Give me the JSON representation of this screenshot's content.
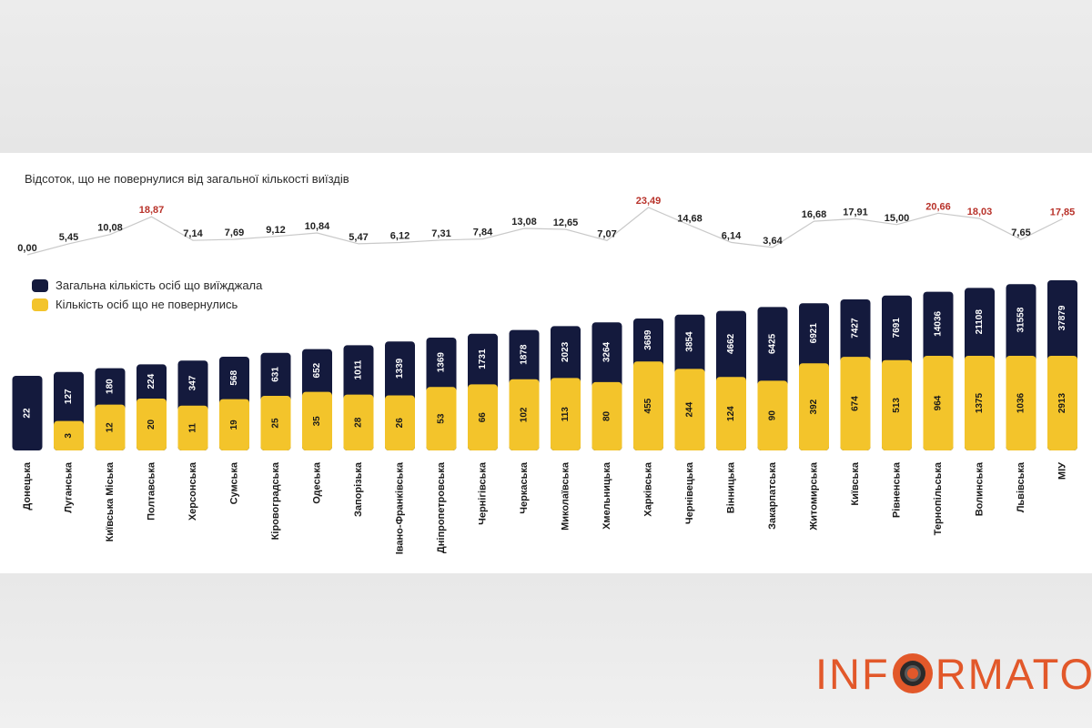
{
  "chart_data": {
    "type": "bar",
    "title": "Відсоток, що не повернулися від загальної кількості виїздів",
    "legend": [
      {
        "label": "Загальна кількість осіб що виїжджала",
        "color": "#141a3d"
      },
      {
        "label": "Кількість осіб що не повернулись",
        "color": "#f3c42b"
      }
    ],
    "categories": [
      "Донецька",
      "Луганська",
      "Київська Міська",
      "Полтавська",
      "Херсонська",
      "Сумська",
      "Кіровоградська",
      "Одеська",
      "Запорізька",
      "Івано-Франківська",
      "Дніпропетровська",
      "Чернігівська",
      "Черкаська",
      "Миколаївська",
      "Хмельницька",
      "Харківська",
      "Чернівецька",
      "Вінницька",
      "Закарпатська",
      "Житомирська",
      "Київська",
      "Рівненська",
      "Тернопільська",
      "Волинська",
      "Львівська",
      "МІУ"
    ],
    "series": [
      {
        "name": "Загальна кількість осіб що виїжджала",
        "values": [
          22,
          127,
          180,
          224,
          347,
          568,
          631,
          652,
          1011,
          1339,
          1369,
          1731,
          1878,
          2023,
          3264,
          3689,
          3854,
          4662,
          6425,
          6921,
          7427,
          7691,
          14036,
          21108,
          31558,
          37879
        ]
      },
      {
        "name": "Кількість осіб що не повернулись",
        "values": [
          0,
          3,
          12,
          20,
          11,
          19,
          25,
          35,
          28,
          26,
          53,
          66,
          102,
          113,
          80,
          455,
          244,
          124,
          90,
          392,
          674,
          513,
          964,
          1375,
          1036,
          2913
        ]
      }
    ],
    "percent_line": {
      "labels": [
        "0,00",
        "5,45",
        "10,08",
        "18,87",
        "7,14",
        "7,69",
        "9,12",
        "10,84",
        "5,47",
        "6,12",
        "7,31",
        "7,84",
        "13,08",
        "12,65",
        "7,07",
        "23,49",
        "14,68",
        "6,14",
        "3,64",
        "16,68",
        "17,91",
        "15,00",
        "20,66",
        "18,03",
        "7,65",
        "17,85"
      ],
      "values": [
        0.0,
        5.45,
        10.08,
        18.87,
        7.14,
        7.69,
        9.12,
        10.84,
        5.47,
        6.12,
        7.31,
        7.84,
        13.08,
        12.65,
        7.07,
        23.49,
        14.68,
        6.14,
        3.64,
        16.68,
        17.91,
        15.0,
        20.66,
        18.03,
        7.65,
        17.85
      ],
      "highlighted": [
        3,
        15,
        22,
        23,
        25
      ],
      "highlight_color": "#b8322a",
      "normal_color": "#222222"
    }
  },
  "brand": {
    "logo_left": "INF",
    "logo_right": "RMATOR",
    "color": "#e2582a"
  }
}
